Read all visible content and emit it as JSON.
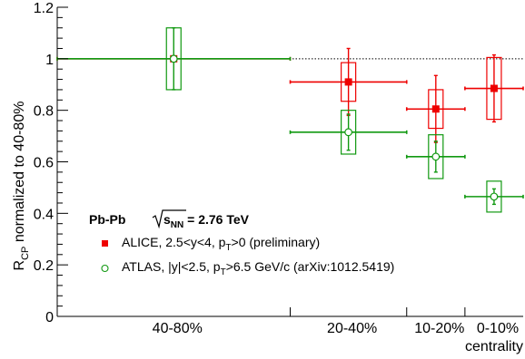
{
  "chart_data": {
    "type": "scatter",
    "x_axis": {
      "label": "centrality",
      "tick_labels": [
        "40-80%",
        "20-40%",
        "10-20%",
        "0-10%"
      ],
      "edges": [
        80,
        40,
        20,
        10,
        0
      ],
      "bin_width_scale": [
        4,
        2,
        1,
        1
      ]
    },
    "y_axis": {
      "label_main": "R",
      "label_sub": "CP",
      "label_rest": " normalized to 40-80%",
      "ylim": [
        0,
        1.2
      ],
      "ticks": [
        "0",
        "0.2",
        "0.4",
        "0.6",
        "0.8",
        "1",
        "1.2"
      ],
      "tick_values": [
        0,
        0.2,
        0.4,
        0.6,
        0.8,
        1,
        1.2
      ]
    },
    "reference_line": 1,
    "legend": {
      "header_prefix": "Pb-Pb ",
      "header_sqrt": "s",
      "header_sub": "NN",
      "header_suffix": " = 2.76 TeV"
    },
    "series": [
      {
        "name_parts": [
          "ALICE, 2.5<y<4, p",
          "T",
          ">0 (preliminary)"
        ],
        "color": "#ee0000",
        "marker": "filled-square",
        "points": [
          {
            "bin": 0,
            "x": 60,
            "y": 1.0,
            "stat": 0.0,
            "sys": 0.0
          },
          {
            "bin": 1,
            "x": 30,
            "y": 0.91,
            "stat": 0.13,
            "sys": 0.075
          },
          {
            "bin": 2,
            "x": 15,
            "y": 0.805,
            "stat": 0.13,
            "sys": 0.075
          },
          {
            "bin": 3,
            "x": 5,
            "y": 0.885,
            "stat": 0.13,
            "sys": 0.12
          }
        ]
      },
      {
        "name_parts": [
          "ATLAS, |y|<2.5, p",
          "T",
          ">6.5 GeV/c (arXiv:1012.5419)"
        ],
        "color": "#119911",
        "marker": "open-circle",
        "points": [
          {
            "bin": 0,
            "x": 60,
            "y": 1.0,
            "stat": 0.12,
            "sys": 0.12
          },
          {
            "bin": 1,
            "x": 30,
            "y": 0.715,
            "stat": 0.07,
            "sys": 0.085
          },
          {
            "bin": 2,
            "x": 15,
            "y": 0.62,
            "stat": 0.06,
            "sys": 0.085
          },
          {
            "bin": 3,
            "x": 5,
            "y": 0.465,
            "stat": 0.03,
            "sys": 0.06
          }
        ]
      }
    ]
  }
}
